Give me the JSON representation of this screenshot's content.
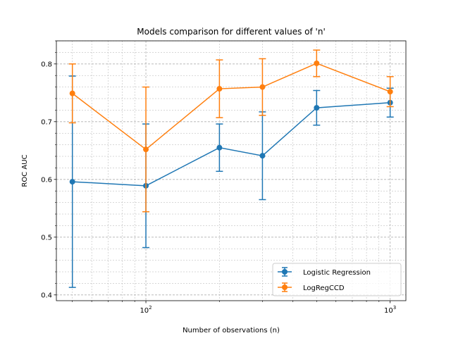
{
  "chart_data": {
    "type": "line",
    "title": "Models comparison for different values of 'n'",
    "xlabel": "Number of observations (n)",
    "ylabel": "ROC AUC",
    "xscale": "log",
    "xlim": [
      43,
      1160
    ],
    "ylim": [
      0.39,
      0.84
    ],
    "x": [
      50,
      100,
      200,
      300,
      500,
      1000
    ],
    "x_ticks": [
      {
        "value": 100,
        "base": "10",
        "exp": "2"
      },
      {
        "value": 1000,
        "base": "10",
        "exp": "3"
      }
    ],
    "y_ticks": [
      {
        "value": 0.4,
        "label": "0.4"
      },
      {
        "value": 0.5,
        "label": "0.5"
      },
      {
        "value": 0.6,
        "label": "0.6"
      },
      {
        "value": 0.7,
        "label": "0.7"
      },
      {
        "value": 0.8,
        "label": "0.8"
      }
    ],
    "grid": "both (major and minor, dashed)",
    "legend_position": "lower-right",
    "series": [
      {
        "name": "Logistic Regression",
        "color": "#1f77b4",
        "values": [
          0.596,
          0.589,
          0.655,
          0.641,
          0.724,
          0.733
        ],
        "error": [
          0.183,
          0.107,
          0.041,
          0.076,
          0.03,
          0.025
        ]
      },
      {
        "name": "LogRegCCD",
        "color": "#ff7f0e",
        "values": [
          0.749,
          0.652,
          0.757,
          0.76,
          0.801,
          0.752
        ],
        "error": [
          0.051,
          0.108,
          0.05,
          0.049,
          0.023,
          0.026
        ]
      }
    ]
  }
}
